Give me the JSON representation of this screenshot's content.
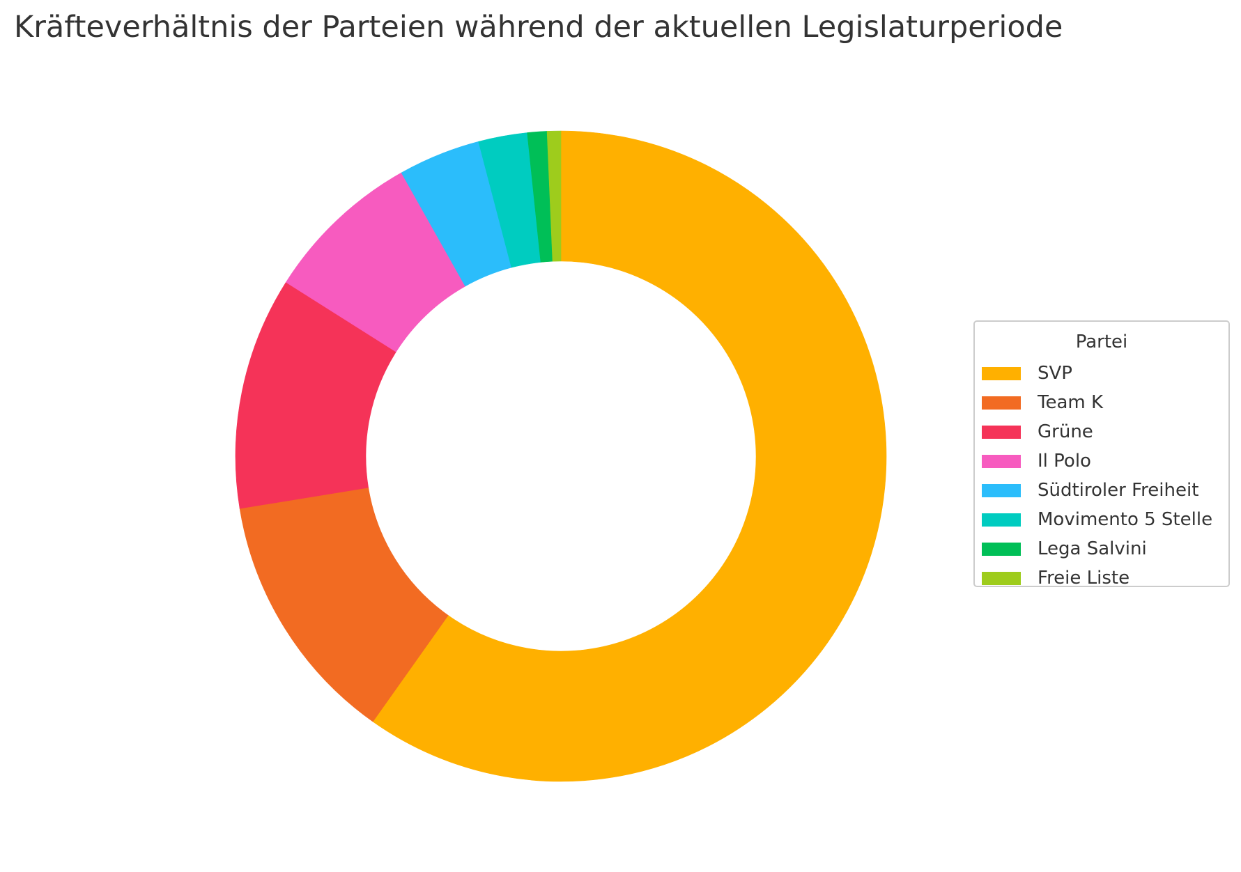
{
  "chart_data": {
    "type": "pie",
    "title": "Kräfteverhältnis der Parteien während der aktuellen Legislaturperiode",
    "legend_title": "Partei",
    "legend_position": "right",
    "donut": true,
    "start": "top, clockwise",
    "slices": [
      {
        "label": "SVP",
        "value": 61.6,
        "color": "#FFB000"
      },
      {
        "label": "Team K",
        "value": 13.0,
        "color": "#F26B22"
      },
      {
        "label": "Grüne",
        "value": 11.9,
        "color": "#F53358"
      },
      {
        "label": "Il Polo",
        "value": 8.1,
        "color": "#F75BBF"
      },
      {
        "label": "Südtiroler Freiheit",
        "value": 4.2,
        "color": "#2BBDFB"
      },
      {
        "label": "Movimento 5 Stelle",
        "value": 2.5,
        "color": "#00CCC0"
      },
      {
        "label": "Lega Salvini",
        "value": 1.0,
        "color": "#00BF57"
      },
      {
        "label": "Freie Liste",
        "value": 0.7,
        "color": "#9ECC1C"
      }
    ]
  }
}
